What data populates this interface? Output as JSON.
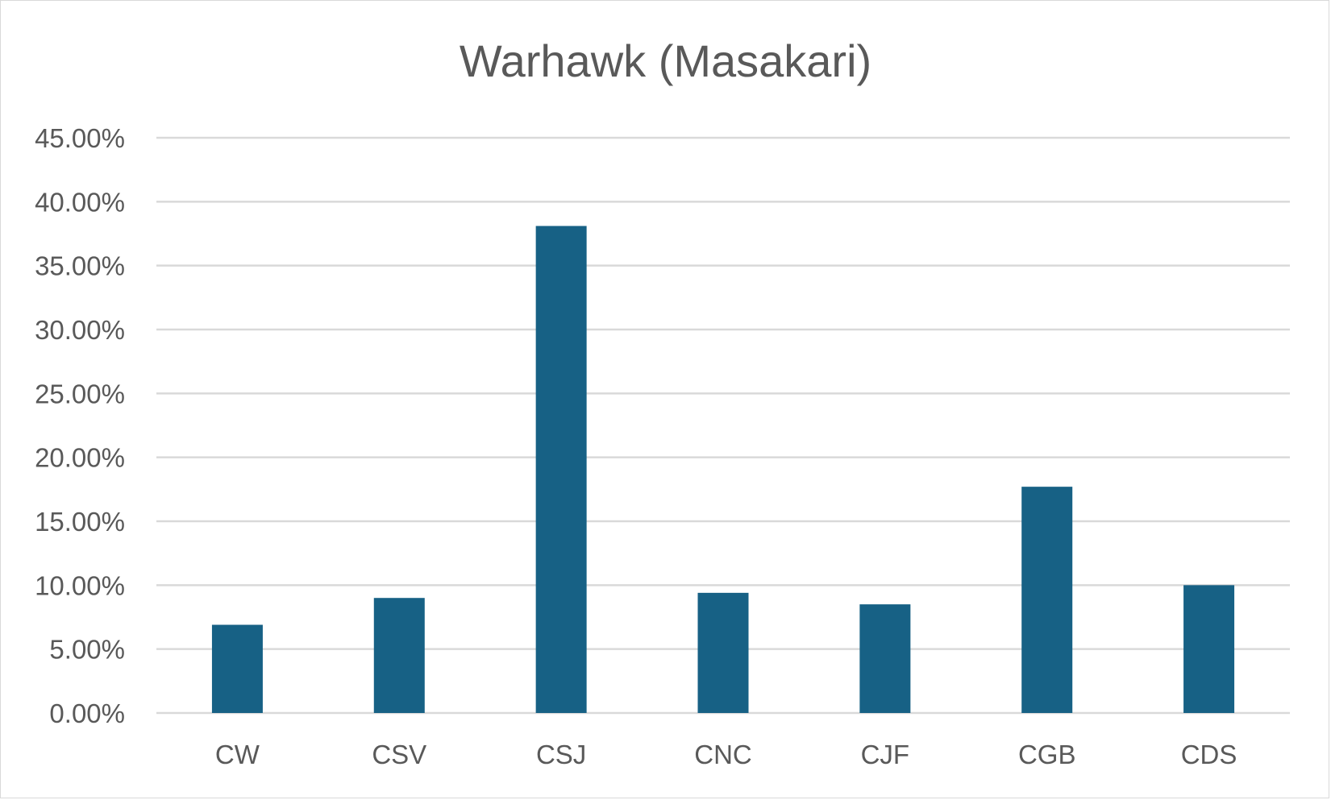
{
  "chart_data": {
    "type": "bar",
    "title": "Warhawk (Masakari)",
    "xlabel": "",
    "ylabel": "",
    "categories": [
      "CW",
      "CSV",
      "CSJ",
      "CNC",
      "CJF",
      "CGB",
      "CDS"
    ],
    "values": [
      0.069,
      0.09,
      0.381,
      0.094,
      0.085,
      0.177,
      0.1
    ],
    "ylim": [
      0,
      0.45
    ],
    "ytick_step": 0.05,
    "ytick_labels": [
      "0.00%",
      "5.00%",
      "10.00%",
      "15.00%",
      "20.00%",
      "25.00%",
      "30.00%",
      "35.00%",
      "40.00%",
      "45.00%"
    ],
    "grid": true,
    "legend": "none",
    "colors": {
      "bar": "#176185",
      "grid": "#d9d9d9",
      "text": "#595959"
    }
  }
}
